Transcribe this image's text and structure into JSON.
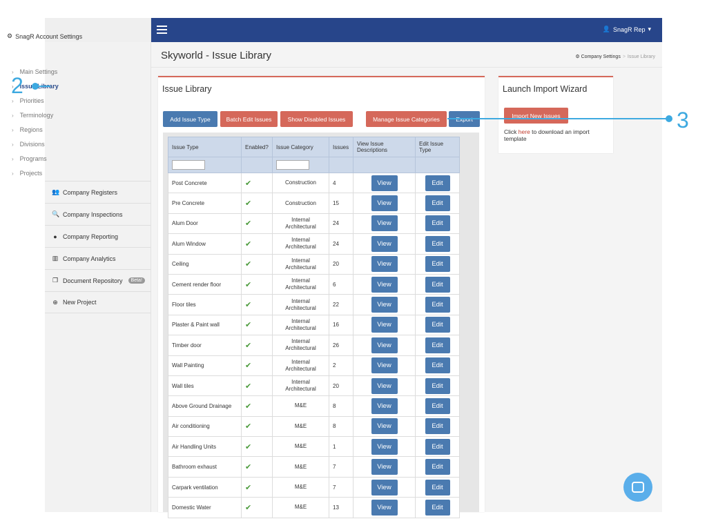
{
  "sidebar": {
    "heading": "SnagR Account Settings",
    "sub_items": [
      {
        "label": "Main Settings"
      },
      {
        "label": "Issue Library"
      },
      {
        "label": "Priorities"
      },
      {
        "label": "Terminology"
      },
      {
        "label": "Regions"
      },
      {
        "label": "Divisions"
      },
      {
        "label": "Programs"
      },
      {
        "label": "Projects"
      }
    ],
    "items": [
      {
        "label": "Company Registers",
        "icon": "users-icon"
      },
      {
        "label": "Company Inspections",
        "icon": "search-icon"
      },
      {
        "label": "Company Reporting",
        "icon": "globe-icon"
      },
      {
        "label": "Company Analytics",
        "icon": "bar-chart-icon"
      },
      {
        "label": "Document Repository",
        "icon": "documents-icon",
        "badge": "Beta!"
      },
      {
        "label": "New Project",
        "icon": "plus-circle-icon"
      }
    ]
  },
  "topbar": {
    "user": "SnagR Rep"
  },
  "header": {
    "title": "Skyworld - Issue Library",
    "breadcrumb": [
      "Company Settings",
      "Issue Library"
    ]
  },
  "main_panel": {
    "title": "Issue Library",
    "buttons": {
      "add": "Add Issue Type",
      "batch": "Batch Edit Issues",
      "disabled": "Show Disabled Issues",
      "categories": "Manage Issue Categories",
      "export": "Export"
    },
    "columns": [
      "Issue Type",
      "Enabled?",
      "Issue Category",
      "Issues",
      "View Issue Descriptions",
      "Edit Issue Type"
    ],
    "view_label": "View",
    "edit_label": "Edit",
    "rows": [
      {
        "type": "Post Concrete",
        "category": "Construction",
        "issues": "4"
      },
      {
        "type": "Pre Concrete",
        "category": "Construction",
        "issues": "15"
      },
      {
        "type": "Alum Door",
        "category": "Internal Architectural",
        "issues": "24"
      },
      {
        "type": "Alum Window",
        "category": "Internal Architectural",
        "issues": "24"
      },
      {
        "type": "Ceiling",
        "category": "Internal Architectural",
        "issues": "20"
      },
      {
        "type": "Cement render floor",
        "category": "Internal Architectural",
        "issues": "6"
      },
      {
        "type": "Floor tiles",
        "category": "Internal Architectural",
        "issues": "22"
      },
      {
        "type": "Plaster & Paint wall",
        "category": "Internal Architectural",
        "issues": "16"
      },
      {
        "type": "Timber door",
        "category": "Internal Architectural",
        "issues": "26"
      },
      {
        "type": "Wall Painting",
        "category": "Internal Architectural",
        "issues": "2"
      },
      {
        "type": "Wall tiles",
        "category": "Internal Architectural",
        "issues": "20"
      },
      {
        "type": "Above Ground Drainage",
        "category": "M&E",
        "issues": "8"
      },
      {
        "type": "Air conditioning",
        "category": "M&E",
        "issues": "8"
      },
      {
        "type": "Air Handling Units",
        "category": "M&E",
        "issues": "1"
      },
      {
        "type": "Bathroom exhaust",
        "category": "M&E",
        "issues": "7"
      },
      {
        "type": "Carpark ventilation",
        "category": "M&E",
        "issues": "7"
      },
      {
        "type": "Domestic Water",
        "category": "M&E",
        "issues": "13"
      }
    ]
  },
  "side_panel": {
    "title": "Launch Import Wizard",
    "button": "Import New Issues",
    "text_before": "Click ",
    "link": "here",
    "text_after": " to download an import template"
  },
  "annotations": [
    "2",
    "3"
  ],
  "colors": {
    "nav": "#27458a",
    "accent": "#d5685a",
    "button_blue": "#4a7ab0",
    "annotation": "#3da9e0"
  }
}
